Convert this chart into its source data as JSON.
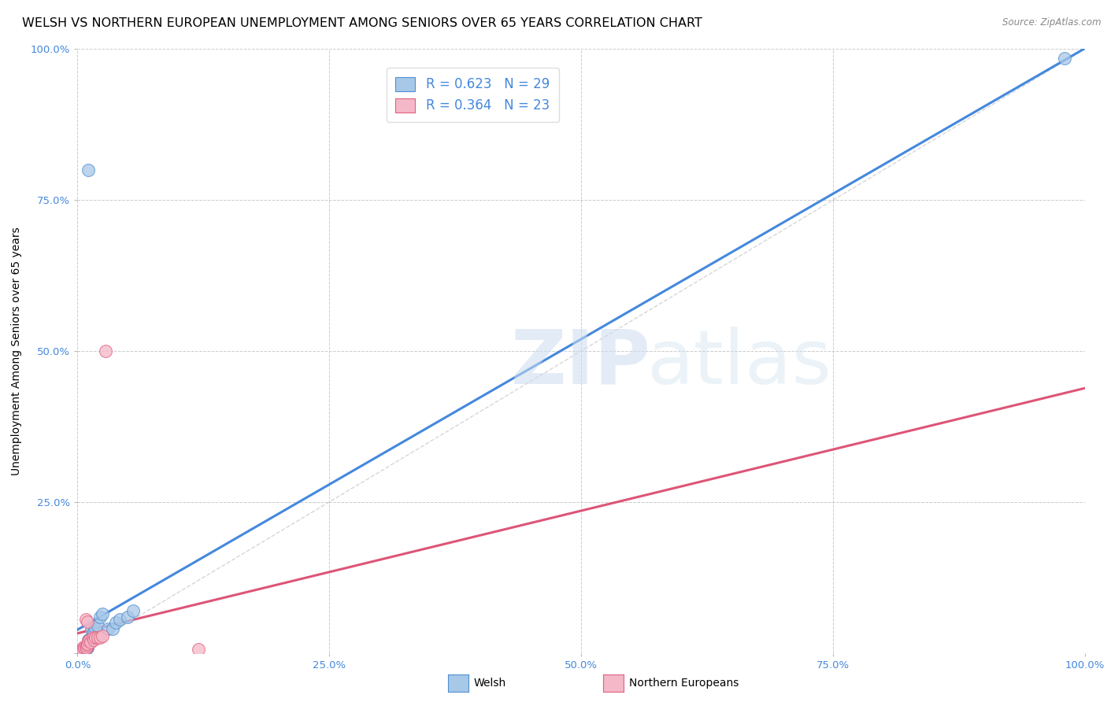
{
  "title": "WELSH VS NORTHERN EUROPEAN UNEMPLOYMENT AMONG SENIORS OVER 65 YEARS CORRELATION CHART",
  "source": "Source: ZipAtlas.com",
  "ylabel": "Unemployment Among Seniors over 65 years",
  "watermark_zip": "ZIP",
  "watermark_atlas": "atlas",
  "welsh_r": 0.623,
  "welsh_n": 29,
  "northern_r": 0.364,
  "northern_n": 23,
  "welsh_color": "#a8c8e8",
  "northern_color": "#f4b8c8",
  "welsh_edge_color": "#5090d0",
  "northern_edge_color": "#e06080",
  "welsh_line_color": "#4488dd",
  "northern_line_color": "#dd5577",
  "diagonal_color": "#cccccc",
  "xlim": [
    0.0,
    1.0
  ],
  "ylim": [
    0.0,
    1.0
  ],
  "xticks": [
    0.0,
    0.25,
    0.5,
    0.75,
    1.0
  ],
  "yticks": [
    0.0,
    0.25,
    0.5,
    0.75,
    1.0
  ],
  "xticklabels": [
    "0.0%",
    "25.0%",
    "50.0%",
    "75.0%",
    "100.0%"
  ],
  "yticklabels": [
    "",
    "25.0%",
    "50.0%",
    "75.0%",
    "100.0%"
  ],
  "welsh_points": [
    [
      0.002,
      0.002
    ],
    [
      0.003,
      0.003
    ],
    [
      0.004,
      0.003
    ],
    [
      0.005,
      0.005
    ],
    [
      0.005,
      0.004
    ],
    [
      0.006,
      0.005
    ],
    [
      0.007,
      0.006
    ],
    [
      0.007,
      0.007
    ],
    [
      0.008,
      0.006
    ],
    [
      0.009,
      0.008
    ],
    [
      0.01,
      0.009
    ],
    [
      0.01,
      0.01
    ],
    [
      0.011,
      0.022
    ],
    [
      0.012,
      0.022
    ],
    [
      0.014,
      0.038
    ],
    [
      0.015,
      0.03
    ],
    [
      0.016,
      0.035
    ],
    [
      0.018,
      0.04
    ],
    [
      0.02,
      0.045
    ],
    [
      0.022,
      0.06
    ],
    [
      0.025,
      0.065
    ],
    [
      0.03,
      0.04
    ],
    [
      0.035,
      0.04
    ],
    [
      0.038,
      0.05
    ],
    [
      0.042,
      0.055
    ],
    [
      0.05,
      0.06
    ],
    [
      0.055,
      0.07
    ],
    [
      0.011,
      0.8
    ],
    [
      0.98,
      0.985
    ]
  ],
  "northern_points": [
    [
      0.002,
      0.003
    ],
    [
      0.003,
      0.002
    ],
    [
      0.004,
      0.004
    ],
    [
      0.005,
      0.005
    ],
    [
      0.006,
      0.01
    ],
    [
      0.007,
      0.008
    ],
    [
      0.008,
      0.01
    ],
    [
      0.009,
      0.008
    ],
    [
      0.01,
      0.012
    ],
    [
      0.01,
      0.015
    ],
    [
      0.011,
      0.02
    ],
    [
      0.012,
      0.022
    ],
    [
      0.013,
      0.018
    ],
    [
      0.015,
      0.025
    ],
    [
      0.016,
      0.022
    ],
    [
      0.018,
      0.025
    ],
    [
      0.02,
      0.025
    ],
    [
      0.022,
      0.025
    ],
    [
      0.025,
      0.028
    ],
    [
      0.008,
      0.055
    ],
    [
      0.01,
      0.052
    ],
    [
      0.028,
      0.5
    ],
    [
      0.12,
      0.006
    ]
  ],
  "marker_size": 130,
  "title_fontsize": 11.5,
  "axis_label_fontsize": 10,
  "tick_fontsize": 9.5,
  "legend_fontsize": 12
}
